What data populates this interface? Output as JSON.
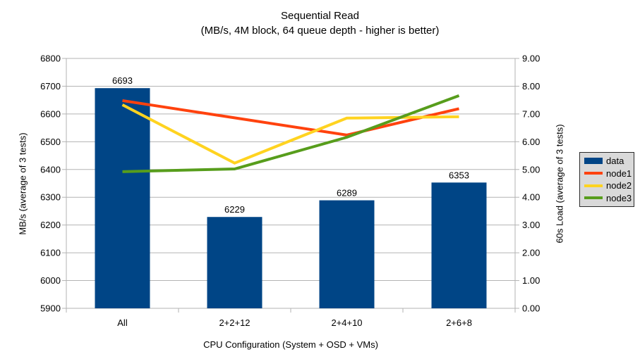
{
  "chart_data": {
    "type": "bar+line combo",
    "title": "Sequential Read",
    "subtitle": "(MB/s, 4M block, 64 queue depth - higher is better)",
    "xlabel": "CPU Configuration (System + OSD + VMs)",
    "ylabel_left": "MB/s (average of 3 tests)",
    "ylabel_right": "60s Load (average of 3 tests)",
    "categories": [
      "All",
      "2+2+12",
      "2+4+10",
      "2+6+8"
    ],
    "bar_series": {
      "name": "data",
      "axis": "left",
      "color": "#004586",
      "values": [
        6693,
        6229,
        6289,
        6353
      ],
      "value_labels": [
        "6693",
        "6229",
        "6289",
        "6353"
      ]
    },
    "line_series": [
      {
        "name": "node1",
        "axis": "right",
        "color": "#ff420e",
        "values": [
          7.48,
          6.86,
          6.24,
          7.19
        ]
      },
      {
        "name": "node2",
        "axis": "right",
        "color": "#ffd320",
        "values": [
          7.33,
          5.23,
          6.85,
          6.9
        ]
      },
      {
        "name": "node3",
        "axis": "right",
        "color": "#579d1c",
        "values": [
          4.92,
          5.02,
          6.16,
          7.66
        ]
      }
    ],
    "axis_left": {
      "min": 5900,
      "max": 6800,
      "step": 100,
      "decimals": 0
    },
    "axis_right": {
      "min": 0,
      "max": 9,
      "step": 1,
      "decimals": 2
    },
    "grid": true,
    "grid_color": "#b3b3b3",
    "axis_color": "#b3b3b3",
    "legend_position": "right",
    "legend": {
      "items": [
        {
          "label": "data",
          "color": "#004586",
          "shape": "rect"
        },
        {
          "label": "node1",
          "color": "#ff420e",
          "shape": "line"
        },
        {
          "label": "node2",
          "color": "#ffd320",
          "shape": "line"
        },
        {
          "label": "node3",
          "color": "#579d1c",
          "shape": "line"
        }
      ]
    }
  }
}
